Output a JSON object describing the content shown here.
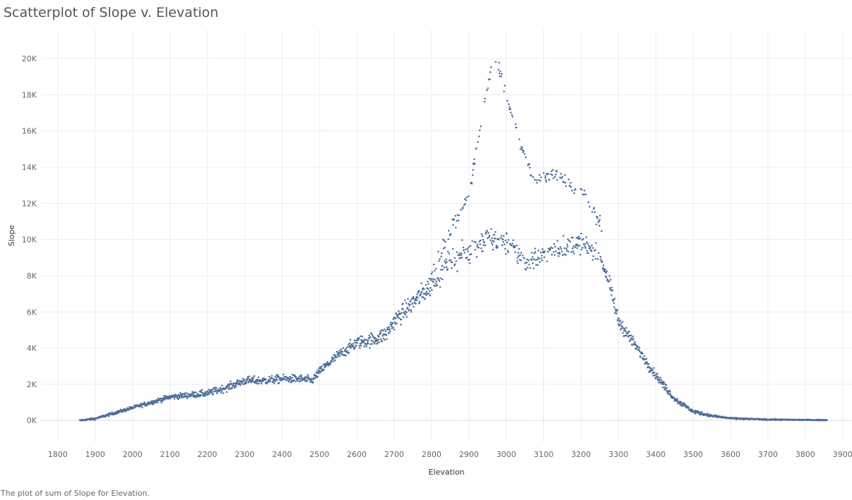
{
  "title": "Scatterplot of Slope v. Elevation",
  "caption": "The plot of sum of Slope for Elevation.",
  "colors": {
    "point": "#4e6d99",
    "grid": "#ececec",
    "zero_line": "#c8c8c8"
  },
  "chart_data": {
    "type": "scatter",
    "title": "Scatterplot of Slope v. Elevation",
    "xlabel": "Elevation",
    "ylabel": "Slope",
    "xlim": [
      1755,
      3925
    ],
    "ylim": [
      -1200,
      21600
    ],
    "x_ticks": [
      1800,
      1900,
      2000,
      2100,
      2200,
      2300,
      2400,
      2500,
      2600,
      2700,
      2800,
      2900,
      3000,
      3100,
      3200,
      3300,
      3400,
      3500,
      3600,
      3700,
      3800,
      3900
    ],
    "x_tick_labels": [
      "1800",
      "1900",
      "2000",
      "2100",
      "2200",
      "2300",
      "2400",
      "2500",
      "2600",
      "2700",
      "2800",
      "2900",
      "3000",
      "3100",
      "3200",
      "3300",
      "3400",
      "3500",
      "3600",
      "3700",
      "3800",
      "3900"
    ],
    "y_ticks": [
      0,
      2000,
      4000,
      6000,
      8000,
      10000,
      12000,
      14000,
      16000,
      18000,
      20000
    ],
    "y_tick_labels": [
      "0K",
      "2K",
      "4K",
      "6K",
      "8K",
      "10K",
      "12K",
      "14K",
      "16K",
      "18K",
      "20K"
    ],
    "grid": true,
    "legend": "none",
    "x_range": [
      1859,
      3858
    ],
    "trend_x": [
      1859,
      1900,
      1950,
      2000,
      2050,
      2100,
      2150,
      2200,
      2250,
      2300,
      2350,
      2400,
      2450,
      2480,
      2500,
      2550,
      2600,
      2650,
      2680,
      2700,
      2750,
      2800,
      2850,
      2900,
      2950,
      3000,
      3050,
      3100,
      3150,
      3200,
      3250,
      3270,
      3300,
      3350,
      3400,
      3450,
      3500,
      3550,
      3600,
      3700,
      3858
    ],
    "trend_y": [
      0,
      100,
      400,
      700,
      1000,
      1300,
      1400,
      1500,
      1800,
      2200,
      2200,
      2300,
      2300,
      2200,
      2700,
      3600,
      4300,
      4500,
      4800,
      5500,
      6500,
      7500,
      8800,
      9300,
      10100,
      9800,
      8800,
      9100,
      9600,
      9800,
      9100,
      8000,
      5500,
      4000,
      2500,
      1200,
      500,
      250,
      120,
      50,
      20
    ],
    "spread_x": [
      1859,
      2300,
      2500,
      2700,
      2800,
      2900,
      3000,
      3250,
      3300,
      3400,
      3500,
      3600,
      3858
    ],
    "spread_y": [
      40,
      220,
      220,
      450,
      600,
      600,
      600,
      500,
      350,
      220,
      100,
      40,
      20
    ],
    "upper_branch_x": [
      2800,
      2850,
      2900,
      2920,
      2950,
      2970,
      3000,
      3020,
      3050,
      3080,
      3100,
      3130,
      3150,
      3170,
      3200,
      3230,
      3260
    ],
    "upper_branch_y": [
      8200,
      10500,
      12500,
      15000,
      18500,
      20200,
      18000,
      16500,
      14500,
      13200,
      13500,
      13600,
      13500,
      12900,
      12700,
      11800,
      10500
    ],
    "points_per_unit": 1
  }
}
